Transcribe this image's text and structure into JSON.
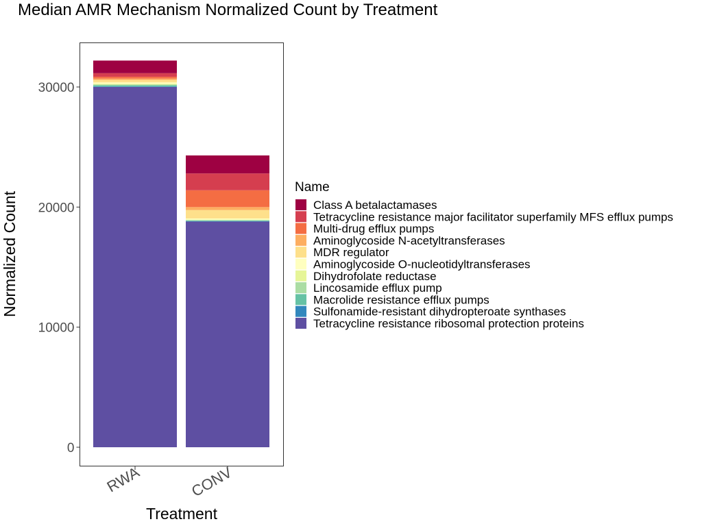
{
  "chart_data": {
    "type": "bar",
    "stacked": true,
    "title": "Median AMR Mechanism Normalized Count by Treatment",
    "xlabel": "Treatment",
    "ylabel": "Normalized Count",
    "categories": [
      "RWA",
      "CONV"
    ],
    "ylim": [
      0,
      32100
    ],
    "yticks": [
      0,
      10000,
      20000,
      30000
    ],
    "grid": false,
    "legend_title": "Name",
    "legend_position": "right",
    "series": [
      {
        "name": "Tetracycline resistance ribosomal protection proteins",
        "color": "#5E4FA2",
        "values": [
          30000,
          18800
        ]
      },
      {
        "name": "Sulfonamide-resistant dihydropteroate synthases",
        "color": "#3288BD",
        "values": [
          40,
          30
        ]
      },
      {
        "name": "Macrolide resistance efflux pumps",
        "color": "#66C2A5",
        "values": [
          100,
          60
        ]
      },
      {
        "name": "Lincosamide efflux pump",
        "color": "#ABDDA4",
        "values": [
          60,
          30
        ]
      },
      {
        "name": "Dihydrofolate reductase",
        "color": "#E6F598",
        "values": [
          60,
          40
        ]
      },
      {
        "name": "Aminoglycoside O-nucleotidyltransferases",
        "color": "#FFFFBF",
        "values": [
          120,
          90
        ]
      },
      {
        "name": "MDR regulator",
        "color": "#FEE08B",
        "values": [
          200,
          700
        ]
      },
      {
        "name": "Aminoglycoside N-acetyltransferases",
        "color": "#FDAE61",
        "values": [
          120,
          250
        ]
      },
      {
        "name": "Multi-drug efflux pumps",
        "color": "#F46D43",
        "values": [
          150,
          1400
        ]
      },
      {
        "name": "Tetracycline resistance major facilitator superfamily MFS efflux pumps",
        "color": "#D53E4F",
        "values": [
          300,
          1400
        ]
      },
      {
        "name": "Class A betalactamases",
        "color": "#9E0142",
        "values": [
          1050,
          1500
        ]
      }
    ],
    "legend_order": [
      "Class A betalactamases",
      "Tetracycline resistance major facilitator superfamily MFS efflux pumps",
      "Multi-drug efflux pumps",
      "Aminoglycoside N-acetyltransferases",
      "MDR regulator",
      "Aminoglycoside O-nucleotidyltransferases",
      "Dihydrofolate reductase",
      "Lincosamide efflux pump",
      "Macrolide resistance efflux pumps",
      "Sulfonamide-resistant dihydropteroate synthases",
      "Tetracycline resistance ribosomal protection proteins"
    ]
  }
}
